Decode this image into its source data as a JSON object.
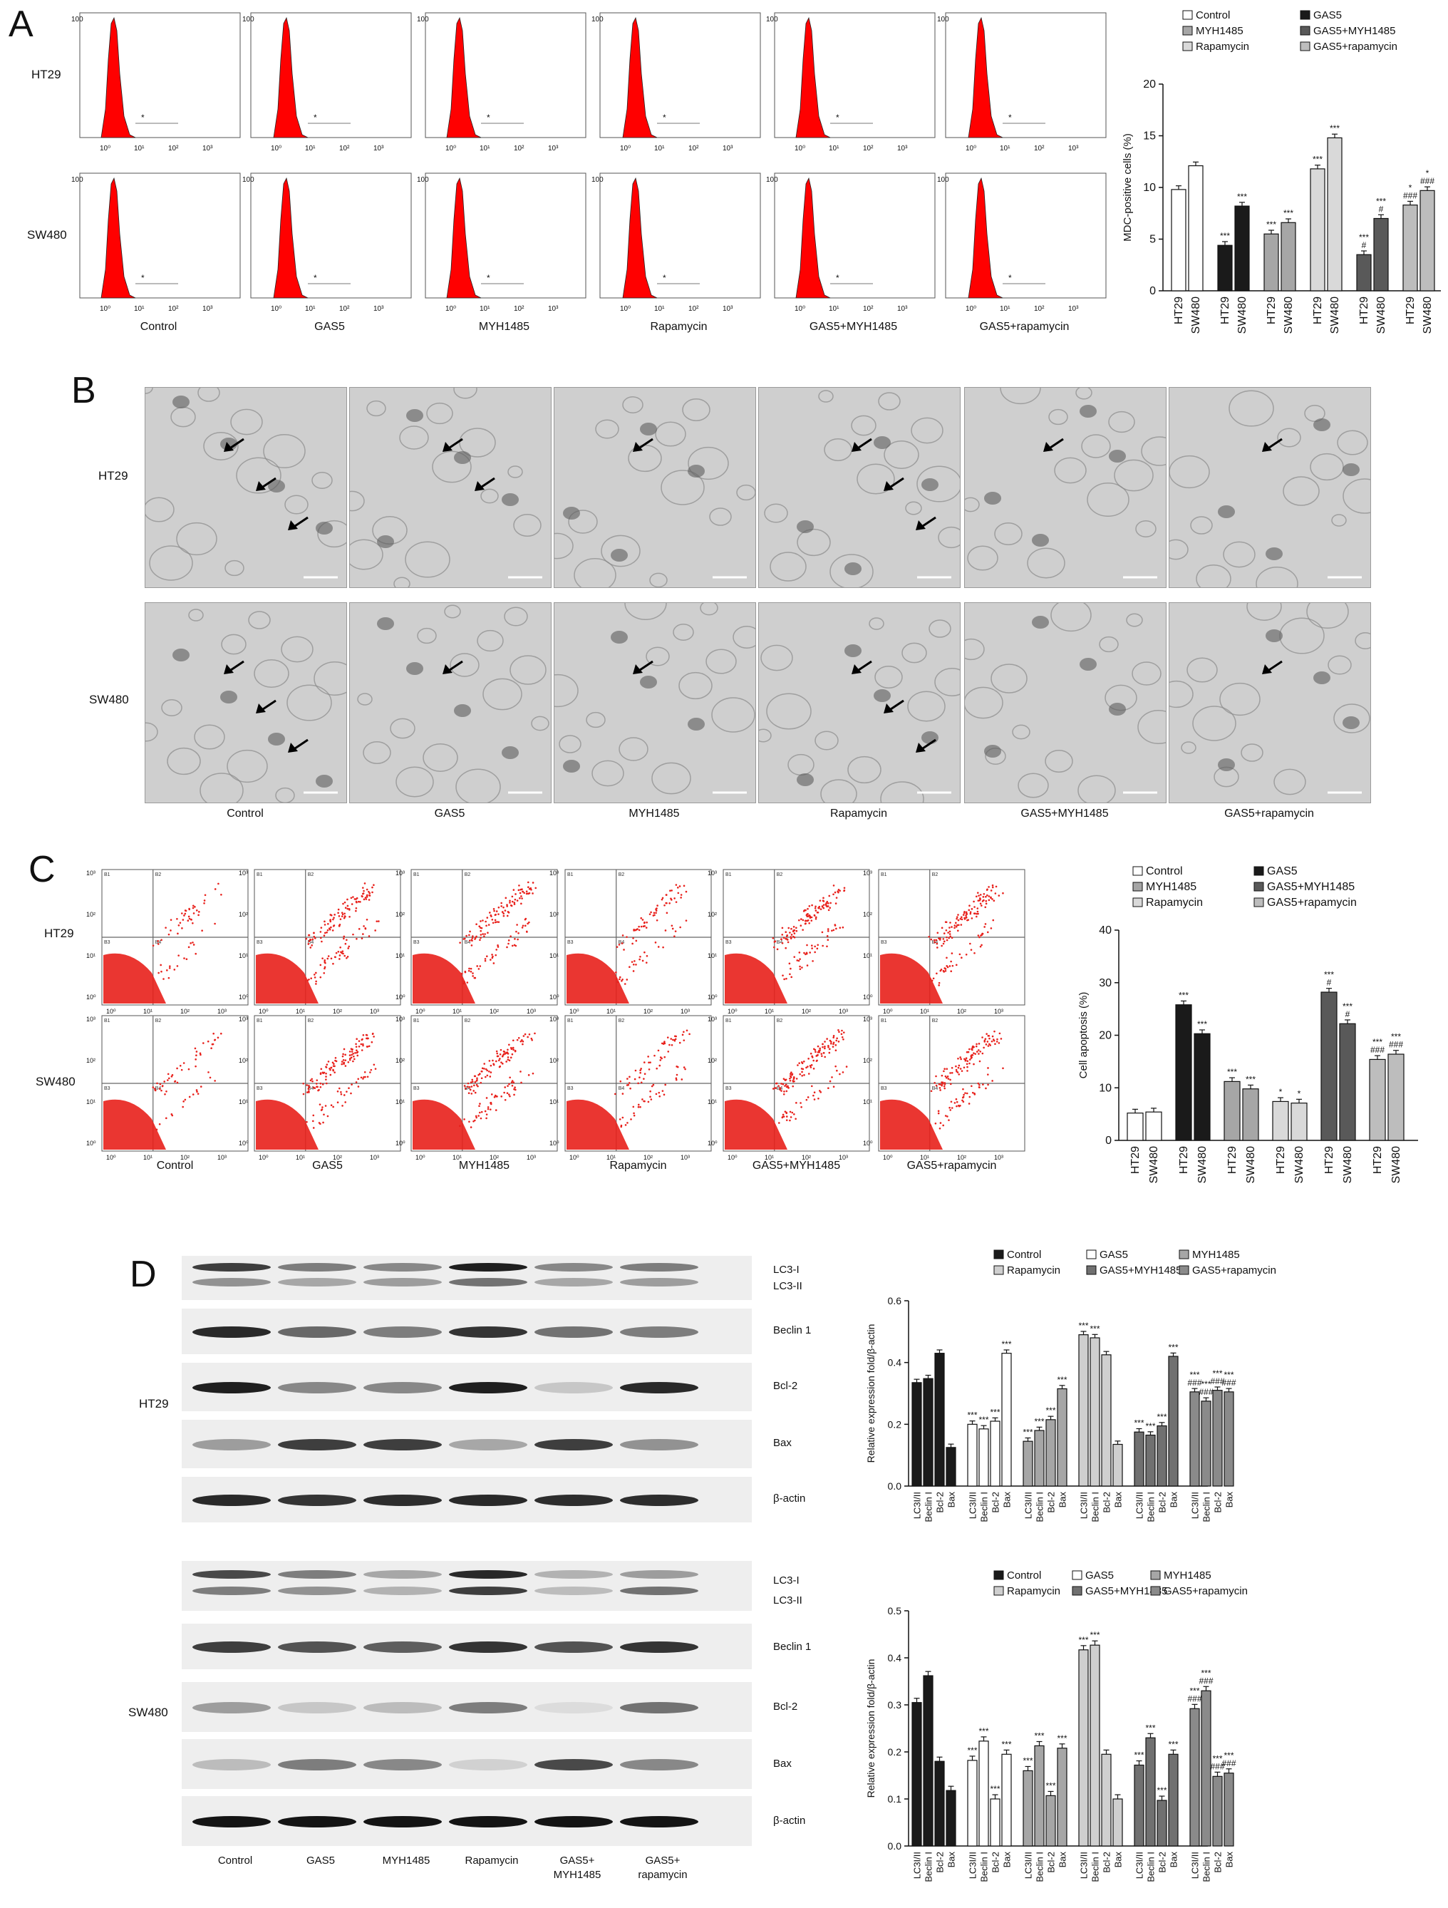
{
  "panels": {
    "A": "A",
    "B": "B",
    "C": "C",
    "D": "D"
  },
  "rows": [
    "HT29",
    "SW480"
  ],
  "conditions": [
    "Control",
    "GAS5",
    "MYH1485",
    "Rapamycin",
    "GAS5+MYH1485",
    "GAS5+rapamycin"
  ],
  "histogram": {
    "ytick": "100",
    "xticks": [
      "10⁰",
      "10¹",
      "10²",
      "10³"
    ],
    "marker": "*"
  },
  "flowplot": {
    "yticks": [
      "10³",
      "10²",
      "10¹",
      "10⁰"
    ],
    "xticks": [
      "10⁰",
      "10¹",
      "10²",
      "10³"
    ],
    "quadrants": [
      "B1",
      "B2",
      "B3",
      "B4"
    ]
  },
  "blot": {
    "ht29_labels": [
      "LC3-I",
      "LC3-II",
      "Beclin 1",
      "Bcl-2",
      "Bax",
      "β-actin"
    ],
    "sw480_labels": [
      "LC3-I",
      "LC3-II",
      "Beclin 1",
      "Bcl-2",
      "Bax",
      "β-actin"
    ],
    "lanes": [
      "Control",
      "GAS5",
      "MYH1485",
      "Rapamycin",
      "GAS5+\nMYH1485",
      "GAS5+\nrapamycin"
    ],
    "lane_row1": [
      "Control",
      "GAS5",
      "MYH1485",
      "Rapamycin",
      "GAS5+",
      "GAS5+"
    ],
    "lane_row2": [
      "",
      "",
      "",
      "",
      "MYH1485",
      "rapamycin"
    ]
  },
  "colors": {
    "histogram_red": "#ff0000",
    "dot_red": "#e8201b",
    "bar_black": "#1a1a1a",
    "bar_white": "#ffffff",
    "bar_gray": "#a6a6a6",
    "bar_dark": "#595959"
  },
  "chart_data": [
    {
      "id": "A",
      "type": "bar",
      "ylabel": "MDC-positive cells (%)",
      "ylim": [
        0,
        20
      ],
      "yticks": [
        0,
        5,
        10,
        15,
        20
      ],
      "categories": [
        "HT29",
        "SW480"
      ],
      "legend": [
        "Control",
        "GAS5",
        "MYH1485",
        "GAS5+MYH1485",
        "Rapamycin",
        "GAS5+rapamycin"
      ],
      "series": [
        {
          "name": "Control",
          "values": [
            9.8,
            12.1
          ],
          "annot": [
            "",
            ""
          ]
        },
        {
          "name": "GAS5",
          "values": [
            4.4,
            8.2
          ],
          "annot": [
            "***",
            "***"
          ]
        },
        {
          "name": "MYH1485",
          "values": [
            5.5,
            6.6
          ],
          "annot": [
            "***",
            "***"
          ]
        },
        {
          "name": "Rapamycin",
          "values": [
            11.8,
            14.8
          ],
          "annot": [
            "***",
            "***"
          ]
        },
        {
          "name": "GAS5+MYH1485",
          "values": [
            3.5,
            7.0
          ],
          "annot": [
            "***\n#",
            "***\n#"
          ]
        },
        {
          "name": "GAS5+rapamycin",
          "values": [
            8.3,
            9.7
          ],
          "annot": [
            "*\n###",
            "*\n###"
          ]
        }
      ]
    },
    {
      "id": "C",
      "type": "bar",
      "ylabel": "Cell apoptosis (%)",
      "ylim": [
        0,
        40
      ],
      "yticks": [
        0,
        10,
        20,
        30,
        40
      ],
      "categories": [
        "HT29",
        "SW480"
      ],
      "legend": [
        "Control",
        "GAS5",
        "MYH1485",
        "GAS5+MYH1485",
        "Rapamycin",
        "GAS5+rapamycin"
      ],
      "series": [
        {
          "name": "Control",
          "values": [
            5.2,
            5.4
          ],
          "annot": [
            "",
            ""
          ]
        },
        {
          "name": "GAS5",
          "values": [
            25.8,
            20.3
          ],
          "annot": [
            "***",
            "***"
          ]
        },
        {
          "name": "MYH1485",
          "values": [
            11.2,
            9.8
          ],
          "annot": [
            "***",
            "***"
          ]
        },
        {
          "name": "Rapamycin",
          "values": [
            7.4,
            7.1
          ],
          "annot": [
            "*",
            "*"
          ]
        },
        {
          "name": "GAS5+MYH1485",
          "values": [
            28.2,
            22.2
          ],
          "annot": [
            "***\n#",
            "***\n#"
          ]
        },
        {
          "name": "GAS5+rapamycin",
          "values": [
            15.4,
            16.4
          ],
          "annot": [
            "***\n###",
            "***\n###"
          ]
        }
      ]
    },
    {
      "id": "D-HT29",
      "type": "bar",
      "ylabel": "Relative expression fold/β-actin",
      "ylim": [
        0,
        0.6
      ],
      "yticks": [
        "0.0",
        "0.2",
        "0.4",
        "0.6"
      ],
      "categories": [
        "LC3I/II",
        "Beclin I",
        "Bcl-2",
        "Bax"
      ],
      "legend": [
        "Control",
        "GAS5",
        "MYH1485",
        "Rapamycin",
        "GAS5+MYH1485",
        "GAS5+rapamycin"
      ],
      "series": [
        {
          "name": "Control",
          "values": [
            0.335,
            0.348,
            0.43,
            0.125
          ],
          "annot": [
            "",
            "",
            "",
            ""
          ]
        },
        {
          "name": "GAS5",
          "values": [
            0.2,
            0.185,
            0.21,
            0.43
          ],
          "annot": [
            "***",
            "***",
            "***",
            "***"
          ]
        },
        {
          "name": "MYH1485",
          "values": [
            0.145,
            0.18,
            0.215,
            0.315
          ],
          "annot": [
            "***",
            "***",
            "***",
            "***"
          ]
        },
        {
          "name": "Rapamycin",
          "values": [
            0.49,
            0.48,
            0.425,
            0.135
          ],
          "annot": [
            "***",
            "***",
            "",
            ""
          ]
        },
        {
          "name": "GAS5+MYH1485",
          "values": [
            0.175,
            0.165,
            0.195,
            0.42
          ],
          "annot": [
            "***",
            "***",
            "***",
            "***"
          ]
        },
        {
          "name": "GAS5+rapamycin",
          "values": [
            0.305,
            0.275,
            0.31,
            0.305
          ],
          "annot": [
            "***\n###",
            "***\n###",
            "***\n###",
            "***\n###"
          ]
        }
      ]
    },
    {
      "id": "D-SW480",
      "type": "bar",
      "ylabel": "Relative expression fold/β-actin",
      "ylim": [
        0,
        0.5
      ],
      "yticks": [
        "0.0",
        "0.1",
        "0.2",
        "0.3",
        "0.4",
        "0.5"
      ],
      "categories": [
        "LC3I/II",
        "Beclin I",
        "Bcl-2",
        "Bax"
      ],
      "legend": [
        "Control",
        "GAS5",
        "MYH1485",
        "Rapamycin",
        "GAS5+MYH1485",
        "GAS5+rapamycin"
      ],
      "series": [
        {
          "name": "Control",
          "values": [
            0.305,
            0.362,
            0.18,
            0.118
          ],
          "annot": [
            "",
            "",
            "",
            ""
          ]
        },
        {
          "name": "GAS5",
          "values": [
            0.182,
            0.223,
            0.1,
            0.195
          ],
          "annot": [
            "***",
            "***",
            "***",
            "***"
          ]
        },
        {
          "name": "MYH1485",
          "values": [
            0.16,
            0.213,
            0.107,
            0.208
          ],
          "annot": [
            "***",
            "***",
            "***",
            "***"
          ]
        },
        {
          "name": "Rapamycin",
          "values": [
            0.417,
            0.427,
            0.195,
            0.1
          ],
          "annot": [
            "***",
            "***",
            "",
            ""
          ]
        },
        {
          "name": "GAS5+MYH1485",
          "values": [
            0.172,
            0.23,
            0.097,
            0.195
          ],
          "annot": [
            "***",
            "***",
            "***",
            "***"
          ]
        },
        {
          "name": "GAS5+rapamycin",
          "values": [
            0.292,
            0.33,
            0.148,
            0.155
          ],
          "annot": [
            "***\n###",
            "***\n###",
            "***\n###",
            "***\n###"
          ]
        }
      ]
    }
  ]
}
